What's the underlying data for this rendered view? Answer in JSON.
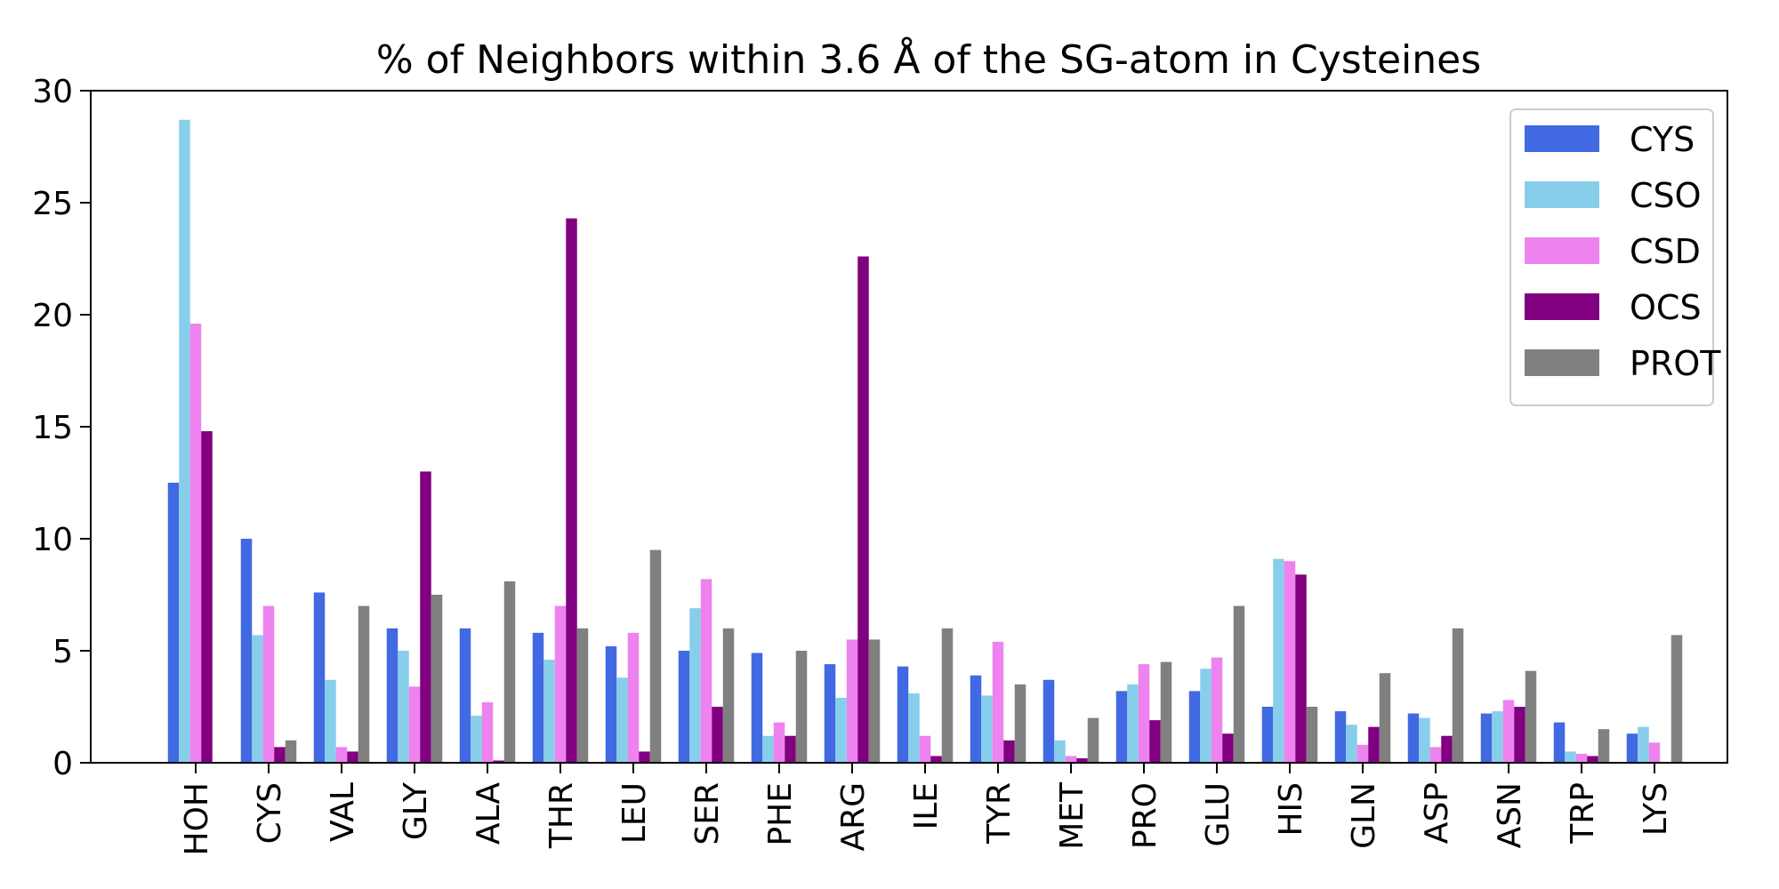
{
  "chart_data": {
    "type": "bar",
    "title": "% of Neighbors within 3.6 Å of the SG-atom in Cysteines",
    "xlabel": "",
    "ylabel": "",
    "ylim": [
      0,
      30
    ],
    "yticks": [
      0,
      5,
      10,
      15,
      20,
      25,
      30
    ],
    "grid": false,
    "legend_position": "top-right",
    "categories": [
      "HOH",
      "CYS",
      "VAL",
      "GLY",
      "ALA",
      "THR",
      "LEU",
      "SER",
      "PHE",
      "ARG",
      "ILE",
      "TYR",
      "MET",
      "PRO",
      "GLU",
      "HIS",
      "GLN",
      "ASP",
      "ASN",
      "TRP",
      "LYS"
    ],
    "series": [
      {
        "name": "CYS",
        "color": "#4169e1",
        "values": [
          12.5,
          10.0,
          7.6,
          6.0,
          6.0,
          5.8,
          5.2,
          5.0,
          4.9,
          4.4,
          4.3,
          3.9,
          3.7,
          3.2,
          3.2,
          2.5,
          2.3,
          2.2,
          2.2,
          1.8,
          1.3
        ]
      },
      {
        "name": "CSO",
        "color": "#87ceeb",
        "values": [
          28.7,
          5.7,
          3.7,
          5.0,
          2.1,
          4.6,
          3.8,
          6.9,
          1.2,
          2.9,
          3.1,
          3.0,
          1.0,
          3.5,
          4.2,
          9.1,
          1.7,
          2.0,
          2.3,
          0.5,
          1.6
        ]
      },
      {
        "name": "CSD",
        "color": "#ee82ee",
        "values": [
          19.6,
          7.0,
          0.7,
          3.4,
          2.7,
          7.0,
          5.8,
          8.2,
          1.8,
          5.5,
          1.2,
          5.4,
          0.3,
          4.4,
          4.7,
          9.0,
          0.8,
          0.7,
          2.8,
          0.4,
          0.9
        ]
      },
      {
        "name": "OCS",
        "color": "#800080",
        "values": [
          14.8,
          0.7,
          0.5,
          13.0,
          0.1,
          24.3,
          0.5,
          2.5,
          1.2,
          22.6,
          0.3,
          1.0,
          0.2,
          1.9,
          1.3,
          8.4,
          1.6,
          1.2,
          2.5,
          0.3,
          0.0
        ]
      },
      {
        "name": "PROT",
        "color": "#808080",
        "values": [
          0.0,
          1.0,
          7.0,
          7.5,
          8.1,
          6.0,
          9.5,
          6.0,
          5.0,
          5.5,
          6.0,
          3.5,
          2.0,
          4.5,
          7.0,
          2.5,
          4.0,
          6.0,
          4.1,
          1.5,
          5.7
        ]
      }
    ]
  }
}
